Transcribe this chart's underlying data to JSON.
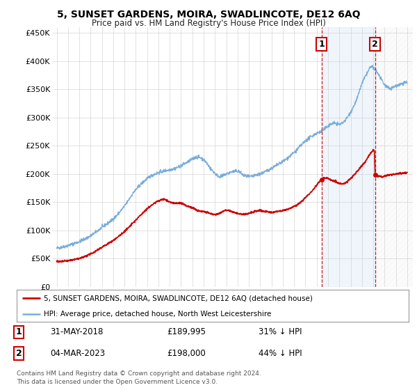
{
  "title": "5, SUNSET GARDENS, MOIRA, SWADLINCOTE, DE12 6AQ",
  "subtitle": "Price paid vs. HM Land Registry's House Price Index (HPI)",
  "ylabel_ticks": [
    "£0",
    "£50K",
    "£100K",
    "£150K",
    "£200K",
    "£250K",
    "£300K",
    "£350K",
    "£400K",
    "£450K"
  ],
  "ytick_values": [
    0,
    50000,
    100000,
    150000,
    200000,
    250000,
    300000,
    350000,
    400000,
    450000
  ],
  "ylim": [
    0,
    460000
  ],
  "xlim_start": 1994.6,
  "xlim_end": 2026.5,
  "sale1_date": 2018.42,
  "sale1_price": 189995,
  "sale2_date": 2023.17,
  "sale2_price": 198000,
  "hpi_color": "#7aaddb",
  "price_color": "#cc0000",
  "span_color": "#ddeeff",
  "legend_red_label": "5, SUNSET GARDENS, MOIRA, SWADLINCOTE, DE12 6AQ (detached house)",
  "legend_blue_label": "HPI: Average price, detached house, North West Leicestershire",
  "table_row1": [
    "1",
    "31-MAY-2018",
    "£189,995",
    "31% ↓ HPI"
  ],
  "table_row2": [
    "2",
    "04-MAR-2023",
    "£198,000",
    "44% ↓ HPI"
  ],
  "footer": "Contains HM Land Registry data © Crown copyright and database right 2024.\nThis data is licensed under the Open Government Licence v3.0.",
  "background_color": "#ffffff",
  "grid_color": "#cccccc"
}
